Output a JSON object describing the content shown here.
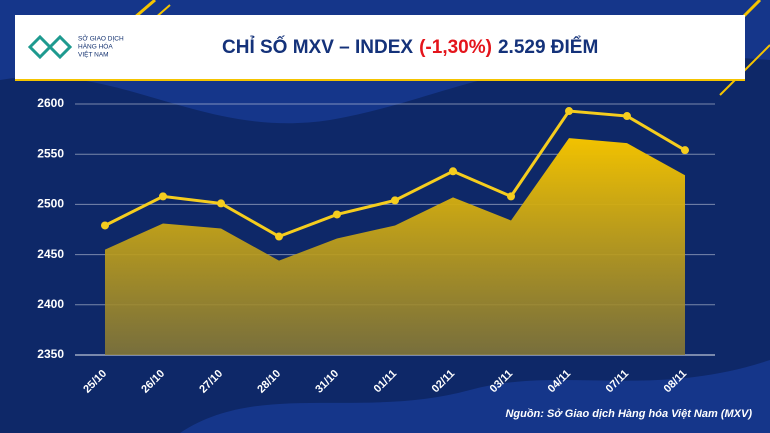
{
  "header": {
    "logo_lines": [
      "SỞ GIAO DỊCH",
      "HÀNG HÓA",
      "VIỆT NAM"
    ]
  },
  "chart_data": {
    "type": "line",
    "title": "CHỈ SỐ MXV – INDEX",
    "title_change": "(-1,30%)",
    "title_value": "2.529 ĐIỂM",
    "source": "Nguồn: Sở Giao dịch Hàng hóa Việt Nam (MXV)",
    "x": [
      "25/10",
      "26/10",
      "27/10",
      "28/10",
      "31/10",
      "01/11",
      "02/11",
      "03/11",
      "04/11",
      "07/11",
      "08/11"
    ],
    "series": [
      {
        "style": "line",
        "color": "#f5cd1e",
        "values": [
          2479,
          2508,
          2501,
          2468,
          2490,
          2504,
          2533,
          2508,
          2593,
          2588,
          2554
        ]
      },
      {
        "style": "area",
        "color": "#f2c200",
        "values": [
          2455,
          2481,
          2476,
          2444,
          2466,
          2479,
          2507,
          2484,
          2566,
          2561,
          2529
        ]
      }
    ],
    "ylim": [
      2350,
      2600
    ],
    "yticks": [
      2350,
      2400,
      2450,
      2500,
      2550,
      2600
    ],
    "grid": true
  }
}
